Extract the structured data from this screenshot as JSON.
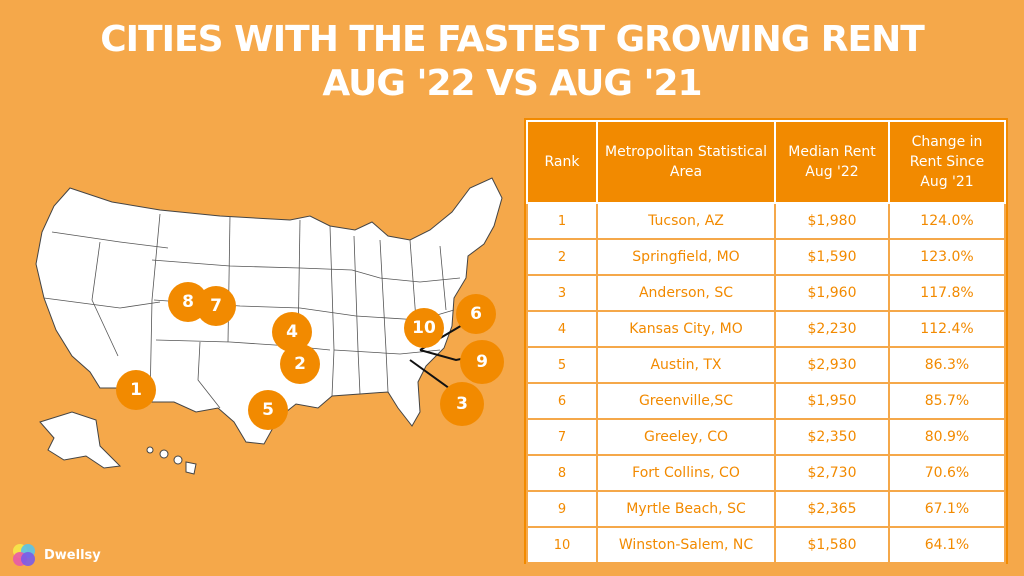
{
  "title": {
    "line1": "CITIES WITH THE FASTEST GROWING RENT",
    "line2": "AUG '22 VS AUG '21"
  },
  "brand": {
    "name": "Dwellsy",
    "icon": "dwellsy-logo-icon"
  },
  "colors": {
    "background": "#f5a84a",
    "accent": "#f28a00",
    "text_light": "#ffffff"
  },
  "map": {
    "markers": [
      "1",
      "2",
      "3",
      "4",
      "5",
      "6",
      "7",
      "8",
      "9",
      "10"
    ]
  },
  "table": {
    "headers": {
      "rank": "Rank",
      "area": "Metropolitan Statistical Area",
      "rent": "Median Rent Aug '22",
      "change": "Change in Rent Since Aug '21"
    },
    "rows": [
      {
        "rank": "1",
        "area": "Tucson, AZ",
        "rent": "$1,980",
        "change": "124.0%"
      },
      {
        "rank": "2",
        "area": "Springfield, MO",
        "rent": "$1,590",
        "change": "123.0%"
      },
      {
        "rank": "3",
        "area": "Anderson, SC",
        "rent": "$1,960",
        "change": "117.8%"
      },
      {
        "rank": "4",
        "area": "Kansas City, MO",
        "rent": "$2,230",
        "change": "112.4%"
      },
      {
        "rank": "5",
        "area": "Austin, TX",
        "rent": "$2,930",
        "change": "86.3%"
      },
      {
        "rank": "6",
        "area": "Greenville,SC",
        "rent": "$1,950",
        "change": "85.7%"
      },
      {
        "rank": "7",
        "area": "Greeley, CO",
        "rent": "$2,350",
        "change": "80.9%"
      },
      {
        "rank": "8",
        "area": "Fort Collins, CO",
        "rent": "$2,730",
        "change": "70.6%"
      },
      {
        "rank": "9",
        "area": "Myrtle Beach, SC",
        "rent": "$2,365",
        "change": "67.1%"
      },
      {
        "rank": "10",
        "area": "Winston-Salem, NC",
        "rent": "$1,580",
        "change": "64.1%"
      }
    ]
  }
}
